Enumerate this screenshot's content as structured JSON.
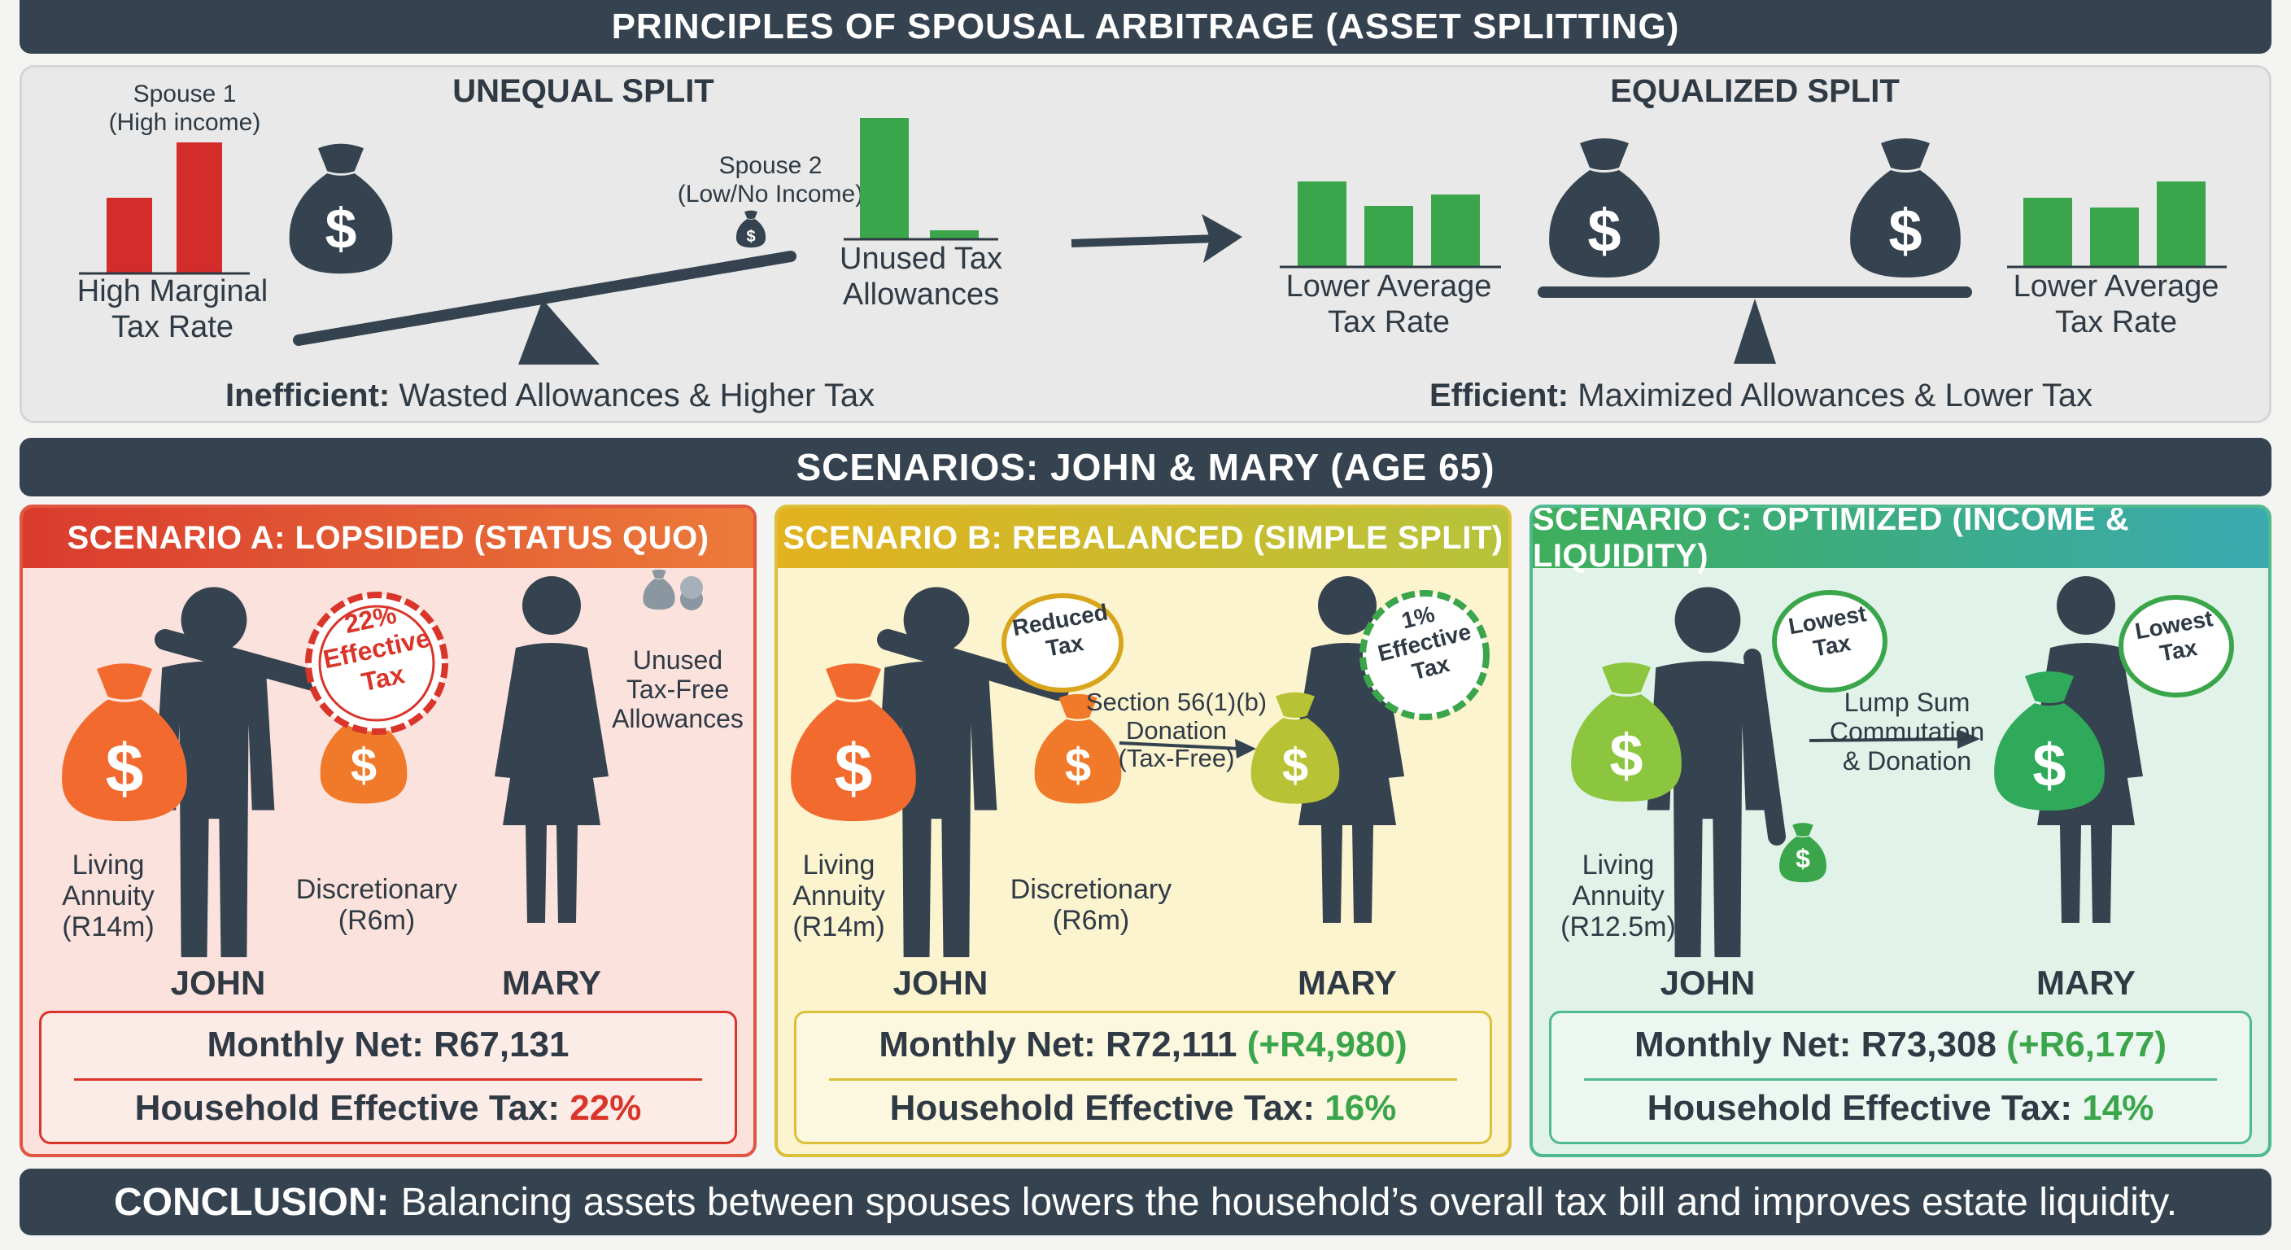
{
  "title": "PRINCIPLES OF SPOUSAL ARBITRAGE (ASSET SPLITTING)",
  "principles": {
    "unequal": {
      "heading": "UNEQUAL SPLIT",
      "spouse1_label": "Spouse 1\n(High income)",
      "spouse2_label": "Spouse 2\n(Low/No Income)",
      "left_caption": "High Marginal\nTax Rate",
      "right_caption": "Unused Tax\nAllowances",
      "verdict_bold": "Inefficient:",
      "verdict_text": "Wasted Allowances & Higher Tax"
    },
    "equalized": {
      "heading": "EQUALIZED SPLIT",
      "left_caption": "Lower Average\nTax Rate",
      "right_caption": "Lower Average\nTax Rate",
      "verdict_bold": "Efficient:",
      "verdict_text": "Maximized Allowances & Lower Tax"
    }
  },
  "scenarios_heading": "SCENARIOS: JOHN & MARY (AGE 65)",
  "scenarios": [
    {
      "title": "SCENARIO A: LOPSIDED (STATUS QUO)",
      "stamp": "22%\nEffective\nTax",
      "john": "JOHN",
      "mary": "MARY",
      "annuity": "Living\nAnnuity\n(R14m)",
      "discretionary": "Discretionary\n(R6m)",
      "note": "Unused\nTax-Free\nAllowances",
      "monthly_label": "Monthly Net:",
      "monthly_value": "R67,131",
      "monthly_delta": "",
      "tax_label": "Household Effective Tax:",
      "tax_value": "22%"
    },
    {
      "title": "SCENARIO B: REBALANCED (SIMPLE SPLIT)",
      "stamp_john": "Reduced\nTax",
      "stamp_mary": "1%\nEffective\nTax",
      "john": "JOHN",
      "mary": "MARY",
      "annuity": "Living\nAnnuity\n(R14m)",
      "discretionary": "Discretionary\n(R6m)",
      "transfer": "Section 56(1)(b)\nDonation\n(Tax-Free)",
      "monthly_label": "Monthly Net:",
      "monthly_value": "R72,111",
      "monthly_delta": "(+R4,980)",
      "tax_label": "Household Effective Tax:",
      "tax_value": "16%"
    },
    {
      "title": "SCENARIO C: OPTIMIZED (INCOME & LIQUIDITY)",
      "stamp_john": "Lowest\nTax",
      "stamp_mary": "Lowest\nTax",
      "john": "JOHN",
      "mary": "MARY",
      "annuity": "Living\nAnnuity\n(R12.5m)",
      "transfer": "Lump Sum\nCommutation\n& Donation",
      "monthly_label": "Monthly Net:",
      "monthly_value": "R73,308",
      "monthly_delta": "(+R6,177)",
      "tax_label": "Household Effective Tax:",
      "tax_value": "14%"
    }
  ],
  "conclusion_bold": "CONCLUSION:",
  "conclusion_text": "Balancing assets between spouses lowers the household’s overall tax bill and improves estate liquidity.",
  "colors": {
    "navy": "#35424f",
    "red": "#d9352a",
    "orange": "#f07a2a",
    "yellow_green": "#b7c235",
    "green": "#3aa54a"
  }
}
